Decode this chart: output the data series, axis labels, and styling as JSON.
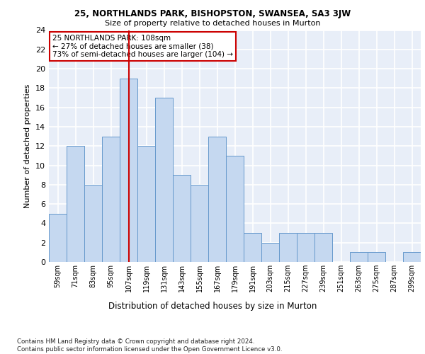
{
  "title1": "25, NORTHLANDS PARK, BISHOPSTON, SWANSEA, SA3 3JW",
  "title2": "Size of property relative to detached houses in Murton",
  "xlabel": "Distribution of detached houses by size in Murton",
  "ylabel": "Number of detached properties",
  "bins": [
    "59sqm",
    "71sqm",
    "83sqm",
    "95sqm",
    "107sqm",
    "119sqm",
    "131sqm",
    "143sqm",
    "155sqm",
    "167sqm",
    "179sqm",
    "191sqm",
    "203sqm",
    "215sqm",
    "227sqm",
    "239sqm",
    "251sqm",
    "263sqm",
    "275sqm",
    "287sqm",
    "299sqm"
  ],
  "values": [
    5,
    12,
    8,
    13,
    19,
    12,
    17,
    9,
    8,
    13,
    11,
    3,
    2,
    3,
    3,
    3,
    0,
    1,
    1,
    0,
    1
  ],
  "bar_color": "#c5d8f0",
  "bar_edge_color": "#6699cc",
  "highlight_index": 4,
  "highlight_color": "#cc0000",
  "annotation_text": "25 NORTHLANDS PARK: 108sqm\n← 27% of detached houses are smaller (38)\n73% of semi-detached houses are larger (104) →",
  "annotation_box_color": "#ffffff",
  "annotation_box_edge": "#cc0000",
  "ylim": [
    0,
    24
  ],
  "yticks": [
    0,
    2,
    4,
    6,
    8,
    10,
    12,
    14,
    16,
    18,
    20,
    22,
    24
  ],
  "footer": "Contains HM Land Registry data © Crown copyright and database right 2024.\nContains public sector information licensed under the Open Government Licence v3.0.",
  "bg_color": "#e8eef8",
  "grid_color": "#ffffff"
}
